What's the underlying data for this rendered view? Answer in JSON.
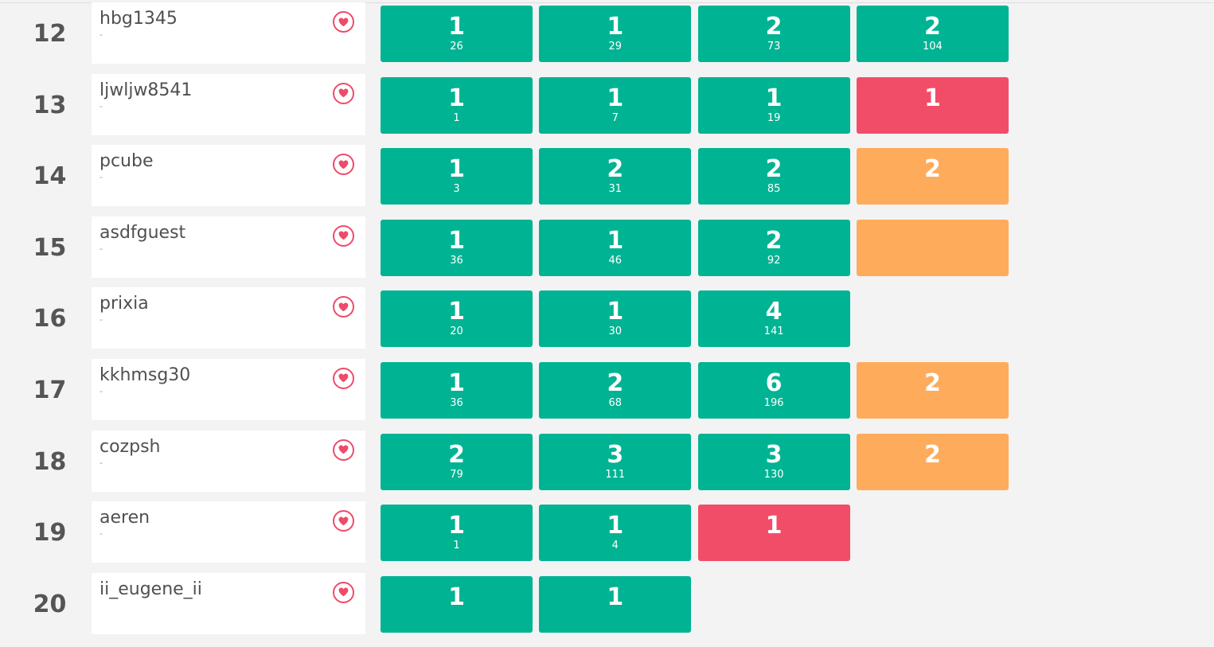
{
  "colors": {
    "solved": "#00b393",
    "failed": "#f24d68",
    "pending": "#feac5c",
    "heart": "#ee4b6a"
  },
  "icons": {
    "like": "heart-icon"
  },
  "rows": [
    {
      "rank": "12",
      "name": "hbg1345",
      "sub": "-",
      "cells": [
        {
          "status": "solved",
          "tries": "1",
          "time": "26"
        },
        {
          "status": "solved",
          "tries": "1",
          "time": "29"
        },
        {
          "status": "solved",
          "tries": "2",
          "time": "73"
        },
        {
          "status": "solved",
          "tries": "2",
          "time": "104"
        }
      ]
    },
    {
      "rank": "13",
      "name": "ljwljw8541",
      "sub": "-",
      "cells": [
        {
          "status": "solved",
          "tries": "1",
          "time": "1"
        },
        {
          "status": "solved",
          "tries": "1",
          "time": "7"
        },
        {
          "status": "solved",
          "tries": "1",
          "time": "19"
        },
        {
          "status": "failed",
          "tries": "1",
          "time": ""
        }
      ]
    },
    {
      "rank": "14",
      "name": "pcube",
      "sub": "-",
      "cells": [
        {
          "status": "solved",
          "tries": "1",
          "time": "3"
        },
        {
          "status": "solved",
          "tries": "2",
          "time": "31"
        },
        {
          "status": "solved",
          "tries": "2",
          "time": "85"
        },
        {
          "status": "pending",
          "tries": "2",
          "time": ""
        }
      ]
    },
    {
      "rank": "15",
      "name": "asdfguest",
      "sub": "-",
      "cells": [
        {
          "status": "solved",
          "tries": "1",
          "time": "36"
        },
        {
          "status": "solved",
          "tries": "1",
          "time": "46"
        },
        {
          "status": "solved",
          "tries": "2",
          "time": "92"
        },
        {
          "status": "pending",
          "tries": "",
          "time": ""
        }
      ]
    },
    {
      "rank": "16",
      "name": "prixia",
      "sub": "-",
      "cells": [
        {
          "status": "solved",
          "tries": "1",
          "time": "20"
        },
        {
          "status": "solved",
          "tries": "1",
          "time": "30"
        },
        {
          "status": "solved",
          "tries": "4",
          "time": "141"
        }
      ]
    },
    {
      "rank": "17",
      "name": "kkhmsg30",
      "sub": "-",
      "cells": [
        {
          "status": "solved",
          "tries": "1",
          "time": "36"
        },
        {
          "status": "solved",
          "tries": "2",
          "time": "68"
        },
        {
          "status": "solved",
          "tries": "6",
          "time": "196"
        },
        {
          "status": "pending",
          "tries": "2",
          "time": ""
        }
      ]
    },
    {
      "rank": "18",
      "name": "cozpsh",
      "sub": "-",
      "cells": [
        {
          "status": "solved",
          "tries": "2",
          "time": "79"
        },
        {
          "status": "solved",
          "tries": "3",
          "time": "111"
        },
        {
          "status": "solved",
          "tries": "3",
          "time": "130"
        },
        {
          "status": "pending",
          "tries": "2",
          "time": ""
        }
      ]
    },
    {
      "rank": "19",
      "name": "aeren",
      "sub": "-",
      "cells": [
        {
          "status": "solved",
          "tries": "1",
          "time": "1"
        },
        {
          "status": "solved",
          "tries": "1",
          "time": "4"
        },
        {
          "status": "failed",
          "tries": "1",
          "time": ""
        }
      ]
    },
    {
      "rank": "20",
      "name": "ii_eugene_ii",
      "sub": "",
      "cells": [
        {
          "status": "solved",
          "tries": "1",
          "time": ""
        },
        {
          "status": "solved",
          "tries": "1",
          "time": ""
        }
      ]
    }
  ]
}
